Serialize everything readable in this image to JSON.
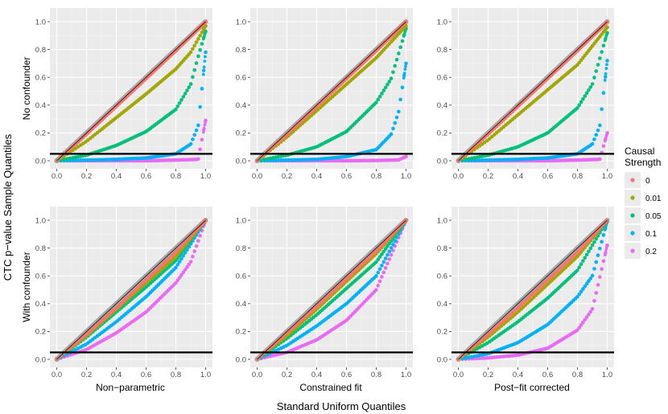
{
  "chart_data": {
    "type": "scatter",
    "xlabel": "Standard Uniform Quantiles",
    "ylabel": "CTC p−value Sample Quantiles",
    "xlim": [
      0,
      1
    ],
    "ylim": [
      0,
      1
    ],
    "x_ticks": [
      0.0,
      0.2,
      0.4,
      0.6,
      0.8,
      1.0
    ],
    "x_tick_labels": [
      "0.0",
      "0.2",
      "0.4",
      "0.6",
      "0.8",
      "1.0"
    ],
    "y_ticks": [
      0.0,
      0.2,
      0.4,
      0.6,
      0.8,
      1.0
    ],
    "y_tick_labels": [
      "0.0",
      "0.2",
      "0.4",
      "0.6",
      "0.8",
      "1.0"
    ],
    "reference_hline": 0.05,
    "grid": true,
    "legend": {
      "title_lines": [
        "Causal",
        "Strength"
      ],
      "position": "right",
      "entries": [
        {
          "label": "0",
          "color": "#F8766D"
        },
        {
          "label": "0.01",
          "color": "#A3A500"
        },
        {
          "label": "0.05",
          "color": "#00BF7D"
        },
        {
          "label": "0.1",
          "color": "#00B0F6"
        },
        {
          "label": "0.2",
          "color": "#E76BF3"
        }
      ]
    },
    "row_labels": [
      "No confounder",
      "With confounder"
    ],
    "column_labels": [
      "Non−parametric",
      "Constrained fit",
      "Post−fit corrected"
    ],
    "panels": [
      {
        "row": 0,
        "col": 0,
        "series": [
          {
            "name": "0",
            "curve": [
              [
                0,
                0
              ],
              [
                0.2,
                0.19
              ],
              [
                0.4,
                0.39
              ],
              [
                0.6,
                0.59
              ],
              [
                0.8,
                0.79
              ],
              [
                1,
                1
              ]
            ]
          },
          {
            "name": "0.01",
            "curve": [
              [
                0,
                0
              ],
              [
                0.2,
                0.14
              ],
              [
                0.4,
                0.31
              ],
              [
                0.6,
                0.48
              ],
              [
                0.8,
                0.66
              ],
              [
                0.9,
                0.78
              ],
              [
                1,
                0.97
              ]
            ]
          },
          {
            "name": "0.05",
            "curve": [
              [
                0,
                0
              ],
              [
                0.2,
                0.04
              ],
              [
                0.4,
                0.11
              ],
              [
                0.6,
                0.21
              ],
              [
                0.8,
                0.37
              ],
              [
                0.9,
                0.55
              ],
              [
                0.95,
                0.75
              ],
              [
                1,
                0.93
              ]
            ]
          },
          {
            "name": "0.1",
            "curve": [
              [
                0,
                0
              ],
              [
                0.4,
                0.01
              ],
              [
                0.6,
                0.02
              ],
              [
                0.8,
                0.05
              ],
              [
                0.9,
                0.12
              ],
              [
                0.95,
                0.25
              ],
              [
                1,
                0.78
              ]
            ]
          },
          {
            "name": "0.2",
            "curve": [
              [
                0,
                0
              ],
              [
                0.6,
                0
              ],
              [
                0.8,
                0.005
              ],
              [
                0.95,
                0.01
              ],
              [
                1,
                0.29
              ]
            ]
          }
        ]
      },
      {
        "row": 0,
        "col": 1,
        "series": [
          {
            "name": "0",
            "curve": [
              [
                0,
                0
              ],
              [
                0.2,
                0.19
              ],
              [
                0.4,
                0.39
              ],
              [
                0.6,
                0.59
              ],
              [
                0.8,
                0.79
              ],
              [
                1,
                1
              ]
            ]
          },
          {
            "name": "0.01",
            "curve": [
              [
                0,
                0
              ],
              [
                0.2,
                0.17
              ],
              [
                0.4,
                0.36
              ],
              [
                0.6,
                0.55
              ],
              [
                0.8,
                0.74
              ],
              [
                1,
                0.97
              ]
            ]
          },
          {
            "name": "0.05",
            "curve": [
              [
                0,
                0
              ],
              [
                0.2,
                0.04
              ],
              [
                0.4,
                0.1
              ],
              [
                0.6,
                0.21
              ],
              [
                0.8,
                0.42
              ],
              [
                0.9,
                0.59
              ],
              [
                1,
                0.95
              ]
            ]
          },
          {
            "name": "0.1",
            "curve": [
              [
                0,
                0
              ],
              [
                0.4,
                0.01
              ],
              [
                0.6,
                0.03
              ],
              [
                0.8,
                0.08
              ],
              [
                0.9,
                0.19
              ],
              [
                0.95,
                0.35
              ],
              [
                1,
                0.7
              ]
            ]
          },
          {
            "name": "0.2",
            "curve": [
              [
                0,
                0
              ],
              [
                0.6,
                0
              ],
              [
                0.8,
                0.002
              ],
              [
                0.95,
                0.006
              ],
              [
                1,
                0.03
              ]
            ]
          }
        ]
      },
      {
        "row": 0,
        "col": 2,
        "series": [
          {
            "name": "0",
            "curve": [
              [
                0,
                0
              ],
              [
                0.2,
                0.19
              ],
              [
                0.4,
                0.39
              ],
              [
                0.6,
                0.59
              ],
              [
                0.8,
                0.79
              ],
              [
                1,
                1
              ]
            ]
          },
          {
            "name": "0.01",
            "curve": [
              [
                0,
                0
              ],
              [
                0.2,
                0.15
              ],
              [
                0.4,
                0.33
              ],
              [
                0.6,
                0.51
              ],
              [
                0.8,
                0.69
              ],
              [
                1,
                0.96
              ]
            ]
          },
          {
            "name": "0.05",
            "curve": [
              [
                0,
                0
              ],
              [
                0.2,
                0.04
              ],
              [
                0.4,
                0.1
              ],
              [
                0.6,
                0.2
              ],
              [
                0.8,
                0.38
              ],
              [
                0.9,
                0.55
              ],
              [
                1,
                0.92
              ]
            ]
          },
          {
            "name": "0.1",
            "curve": [
              [
                0,
                0
              ],
              [
                0.4,
                0.01
              ],
              [
                0.6,
                0.02
              ],
              [
                0.8,
                0.05
              ],
              [
                0.9,
                0.12
              ],
              [
                0.95,
                0.25
              ],
              [
                1,
                0.72
              ]
            ]
          },
          {
            "name": "0.2",
            "curve": [
              [
                0,
                0
              ],
              [
                0.6,
                0
              ],
              [
                0.8,
                0.005
              ],
              [
                0.95,
                0.01
              ],
              [
                1,
                0.2
              ]
            ]
          }
        ]
      },
      {
        "row": 1,
        "col": 0,
        "series": [
          {
            "name": "0",
            "curve": [
              [
                0,
                0
              ],
              [
                0.2,
                0.18
              ],
              [
                0.4,
                0.37
              ],
              [
                0.6,
                0.57
              ],
              [
                0.8,
                0.77
              ],
              [
                1,
                1
              ]
            ]
          },
          {
            "name": "0.01",
            "curve": [
              [
                0,
                0
              ],
              [
                0.2,
                0.17
              ],
              [
                0.4,
                0.36
              ],
              [
                0.6,
                0.55
              ],
              [
                0.8,
                0.74
              ],
              [
                1,
                1
              ]
            ]
          },
          {
            "name": "0.05",
            "curve": [
              [
                0,
                0
              ],
              [
                0.2,
                0.16
              ],
              [
                0.4,
                0.34
              ],
              [
                0.6,
                0.52
              ],
              [
                0.8,
                0.71
              ],
              [
                1,
                1
              ]
            ]
          },
          {
            "name": "0.1",
            "curve": [
              [
                0,
                0
              ],
              [
                0.2,
                0.11
              ],
              [
                0.4,
                0.27
              ],
              [
                0.6,
                0.45
              ],
              [
                0.8,
                0.66
              ],
              [
                1,
                1
              ]
            ]
          },
          {
            "name": "0.2",
            "curve": [
              [
                0,
                0
              ],
              [
                0.2,
                0.07
              ],
              [
                0.4,
                0.19
              ],
              [
                0.6,
                0.34
              ],
              [
                0.8,
                0.55
              ],
              [
                0.9,
                0.7
              ],
              [
                1,
                1
              ]
            ]
          }
        ]
      },
      {
        "row": 1,
        "col": 1,
        "series": [
          {
            "name": "0",
            "curve": [
              [
                0,
                0
              ],
              [
                0.2,
                0.19
              ],
              [
                0.4,
                0.38
              ],
              [
                0.6,
                0.58
              ],
              [
                0.8,
                0.78
              ],
              [
                1,
                1
              ]
            ]
          },
          {
            "name": "0.01",
            "curve": [
              [
                0,
                0
              ],
              [
                0.2,
                0.17
              ],
              [
                0.4,
                0.36
              ],
              [
                0.6,
                0.56
              ],
              [
                0.8,
                0.76
              ],
              [
                1,
                1
              ]
            ]
          },
          {
            "name": "0.05",
            "curve": [
              [
                0,
                0
              ],
              [
                0.2,
                0.15
              ],
              [
                0.4,
                0.32
              ],
              [
                0.6,
                0.51
              ],
              [
                0.8,
                0.7
              ],
              [
                1,
                1
              ]
            ]
          },
          {
            "name": "0.1",
            "curve": [
              [
                0,
                0
              ],
              [
                0.2,
                0.1
              ],
              [
                0.4,
                0.24
              ],
              [
                0.6,
                0.4
              ],
              [
                0.8,
                0.6
              ],
              [
                1,
                1
              ]
            ]
          },
          {
            "name": "0.2",
            "curve": [
              [
                0,
                0
              ],
              [
                0.2,
                0.05
              ],
              [
                0.4,
                0.14
              ],
              [
                0.6,
                0.28
              ],
              [
                0.8,
                0.5
              ],
              [
                1,
                1
              ]
            ]
          }
        ]
      },
      {
        "row": 1,
        "col": 2,
        "series": [
          {
            "name": "0",
            "curve": [
              [
                0,
                0
              ],
              [
                0.2,
                0.18
              ],
              [
                0.4,
                0.37
              ],
              [
                0.6,
                0.57
              ],
              [
                0.8,
                0.77
              ],
              [
                1,
                1
              ]
            ]
          },
          {
            "name": "0.01",
            "curve": [
              [
                0,
                0
              ],
              [
                0.2,
                0.16
              ],
              [
                0.4,
                0.34
              ],
              [
                0.6,
                0.54
              ],
              [
                0.8,
                0.74
              ],
              [
                1,
                1
              ]
            ]
          },
          {
            "name": "0.05",
            "curve": [
              [
                0,
                0
              ],
              [
                0.2,
                0.12
              ],
              [
                0.4,
                0.27
              ],
              [
                0.6,
                0.44
              ],
              [
                0.8,
                0.64
              ],
              [
                1,
                1
              ]
            ]
          },
          {
            "name": "0.1",
            "curve": [
              [
                0,
                0
              ],
              [
                0.2,
                0.04
              ],
              [
                0.4,
                0.12
              ],
              [
                0.6,
                0.25
              ],
              [
                0.8,
                0.45
              ],
              [
                0.9,
                0.6
              ],
              [
                1,
                0.99
              ]
            ]
          },
          {
            "name": "0.2",
            "curve": [
              [
                0,
                0
              ],
              [
                0.2,
                0.01
              ],
              [
                0.4,
                0.03
              ],
              [
                0.6,
                0.08
              ],
              [
                0.8,
                0.21
              ],
              [
                0.9,
                0.36
              ],
              [
                1,
                0.82
              ]
            ]
          }
        ]
      }
    ]
  }
}
